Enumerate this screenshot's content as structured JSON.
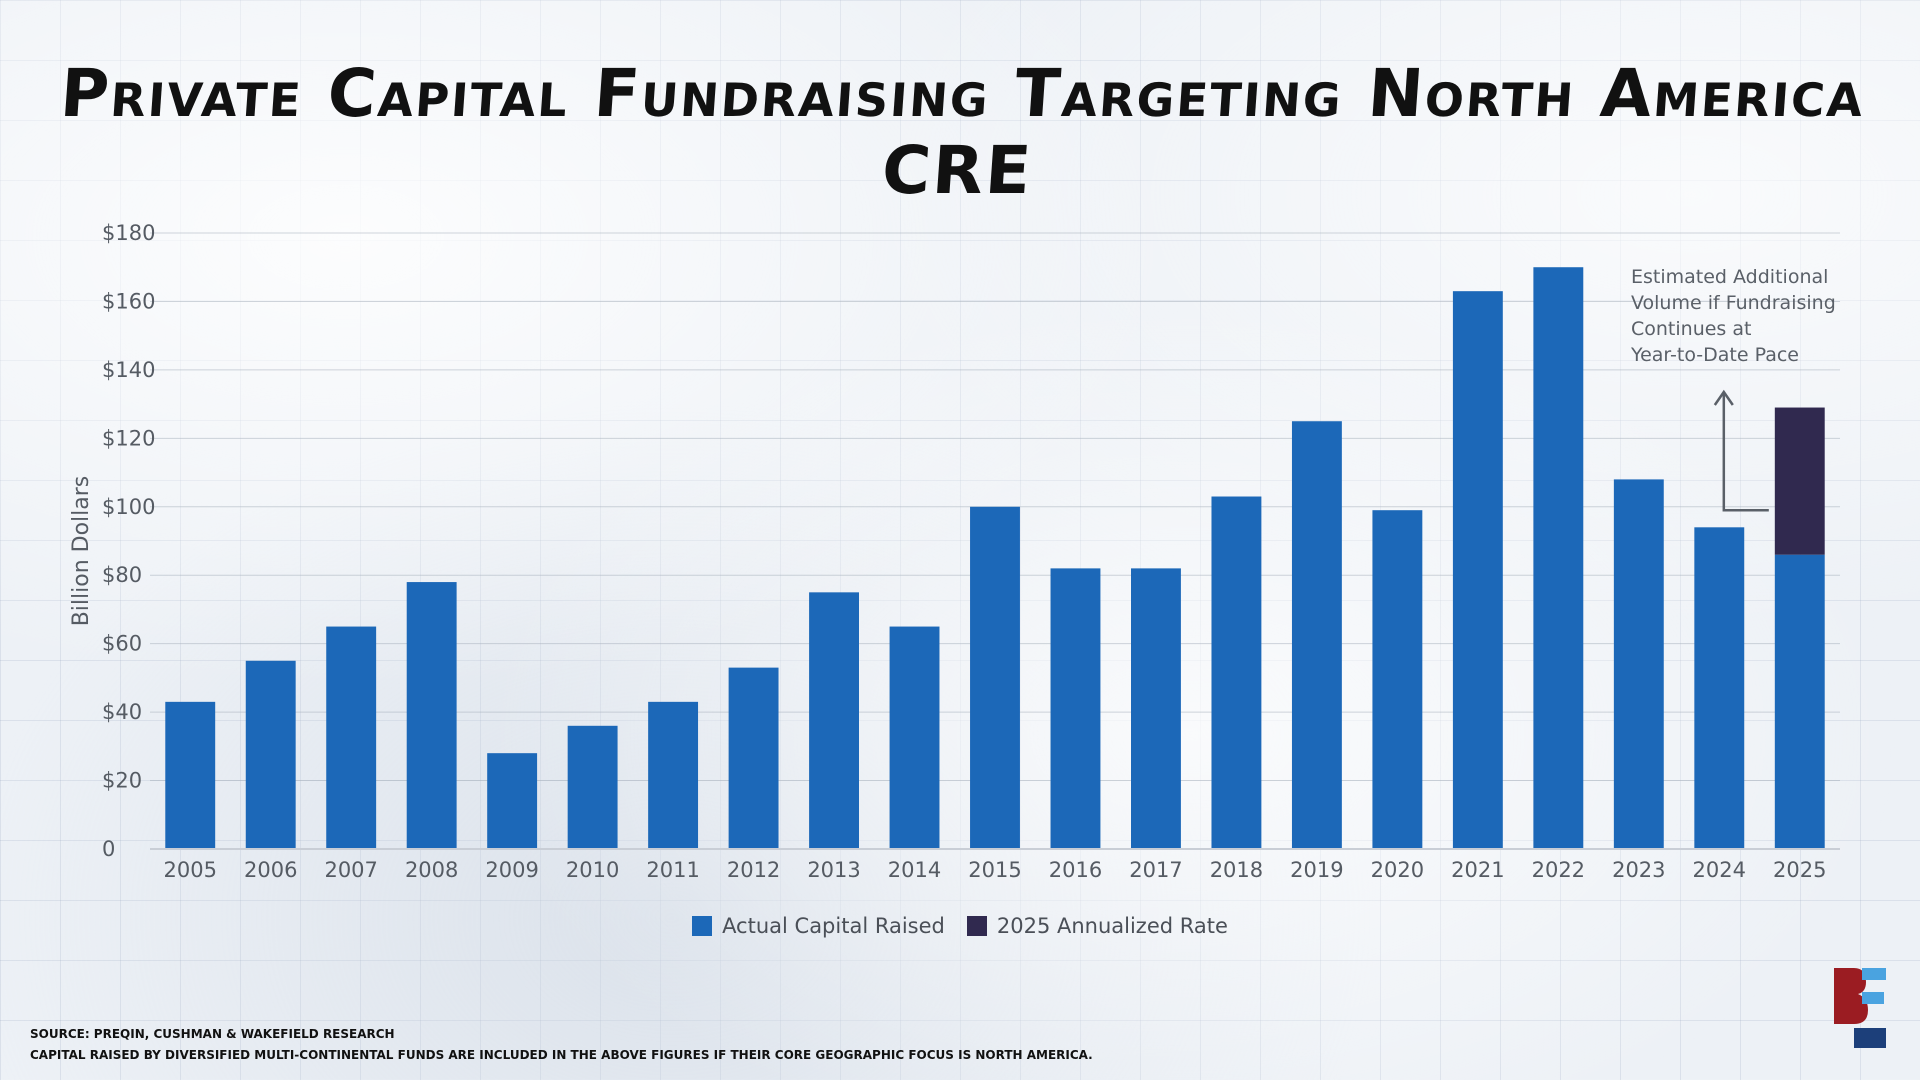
{
  "title": "Private Capital Fundraising Targeting North America CRE",
  "chart_data": {
    "type": "bar",
    "title": "Private Capital Fundraising Targeting North America CRE",
    "ylabel": "Billion Dollars",
    "xlabel": "",
    "ylim": [
      0,
      180
    ],
    "y_ticks": [
      0,
      20,
      40,
      60,
      80,
      100,
      120,
      140,
      160,
      180
    ],
    "y_tick_labels": [
      "0",
      "$20",
      "$40",
      "$60",
      "$80",
      "$100",
      "$120",
      "$140",
      "$160",
      "$180"
    ],
    "grid": true,
    "categories": [
      "2005",
      "2006",
      "2007",
      "2008",
      "2009",
      "2010",
      "2011",
      "2012",
      "2013",
      "2014",
      "2015",
      "2016",
      "2017",
      "2018",
      "2019",
      "2020",
      "2021",
      "2022",
      "2023",
      "2024",
      "2025"
    ],
    "series": [
      {
        "name": "Actual Capital Raised",
        "color": "#1c68b8",
        "values": [
          43,
          55,
          65,
          78,
          28,
          36,
          43,
          53,
          75,
          65,
          100,
          82,
          82,
          103,
          125,
          99,
          163,
          170,
          108,
          94,
          86
        ]
      },
      {
        "name": "2025 Annualized Rate",
        "color": "#30294f",
        "values": [
          0,
          0,
          0,
          0,
          0,
          0,
          0,
          0,
          0,
          0,
          0,
          0,
          0,
          0,
          0,
          0,
          0,
          0,
          0,
          0,
          43
        ]
      }
    ],
    "legend_position": "bottom-center",
    "annotation": {
      "lines": [
        "Estimated Additional",
        "Volume if Fundraising",
        "Continues at",
        "Year-to-Date Pace"
      ],
      "target_category": "2025"
    }
  },
  "source_lines": [
    "SOURCE: PREQIN, CUSHMAN & WAKEFIELD RESEARCH",
    "CAPITAL RAISED BY DIVERSIFIED MULTI-CONTINENTAL FUNDS ARE INCLUDED IN THE ABOVE FIGURES IF THEIR CORE GEOGRAPHIC FOCUS IS NORTH AMERICA."
  ],
  "logo": {
    "name": "brand-logo",
    "colors": {
      "primary": "#9b1c22",
      "secondary": "#4aa3e0",
      "tertiary": "#1c3f7a"
    }
  }
}
